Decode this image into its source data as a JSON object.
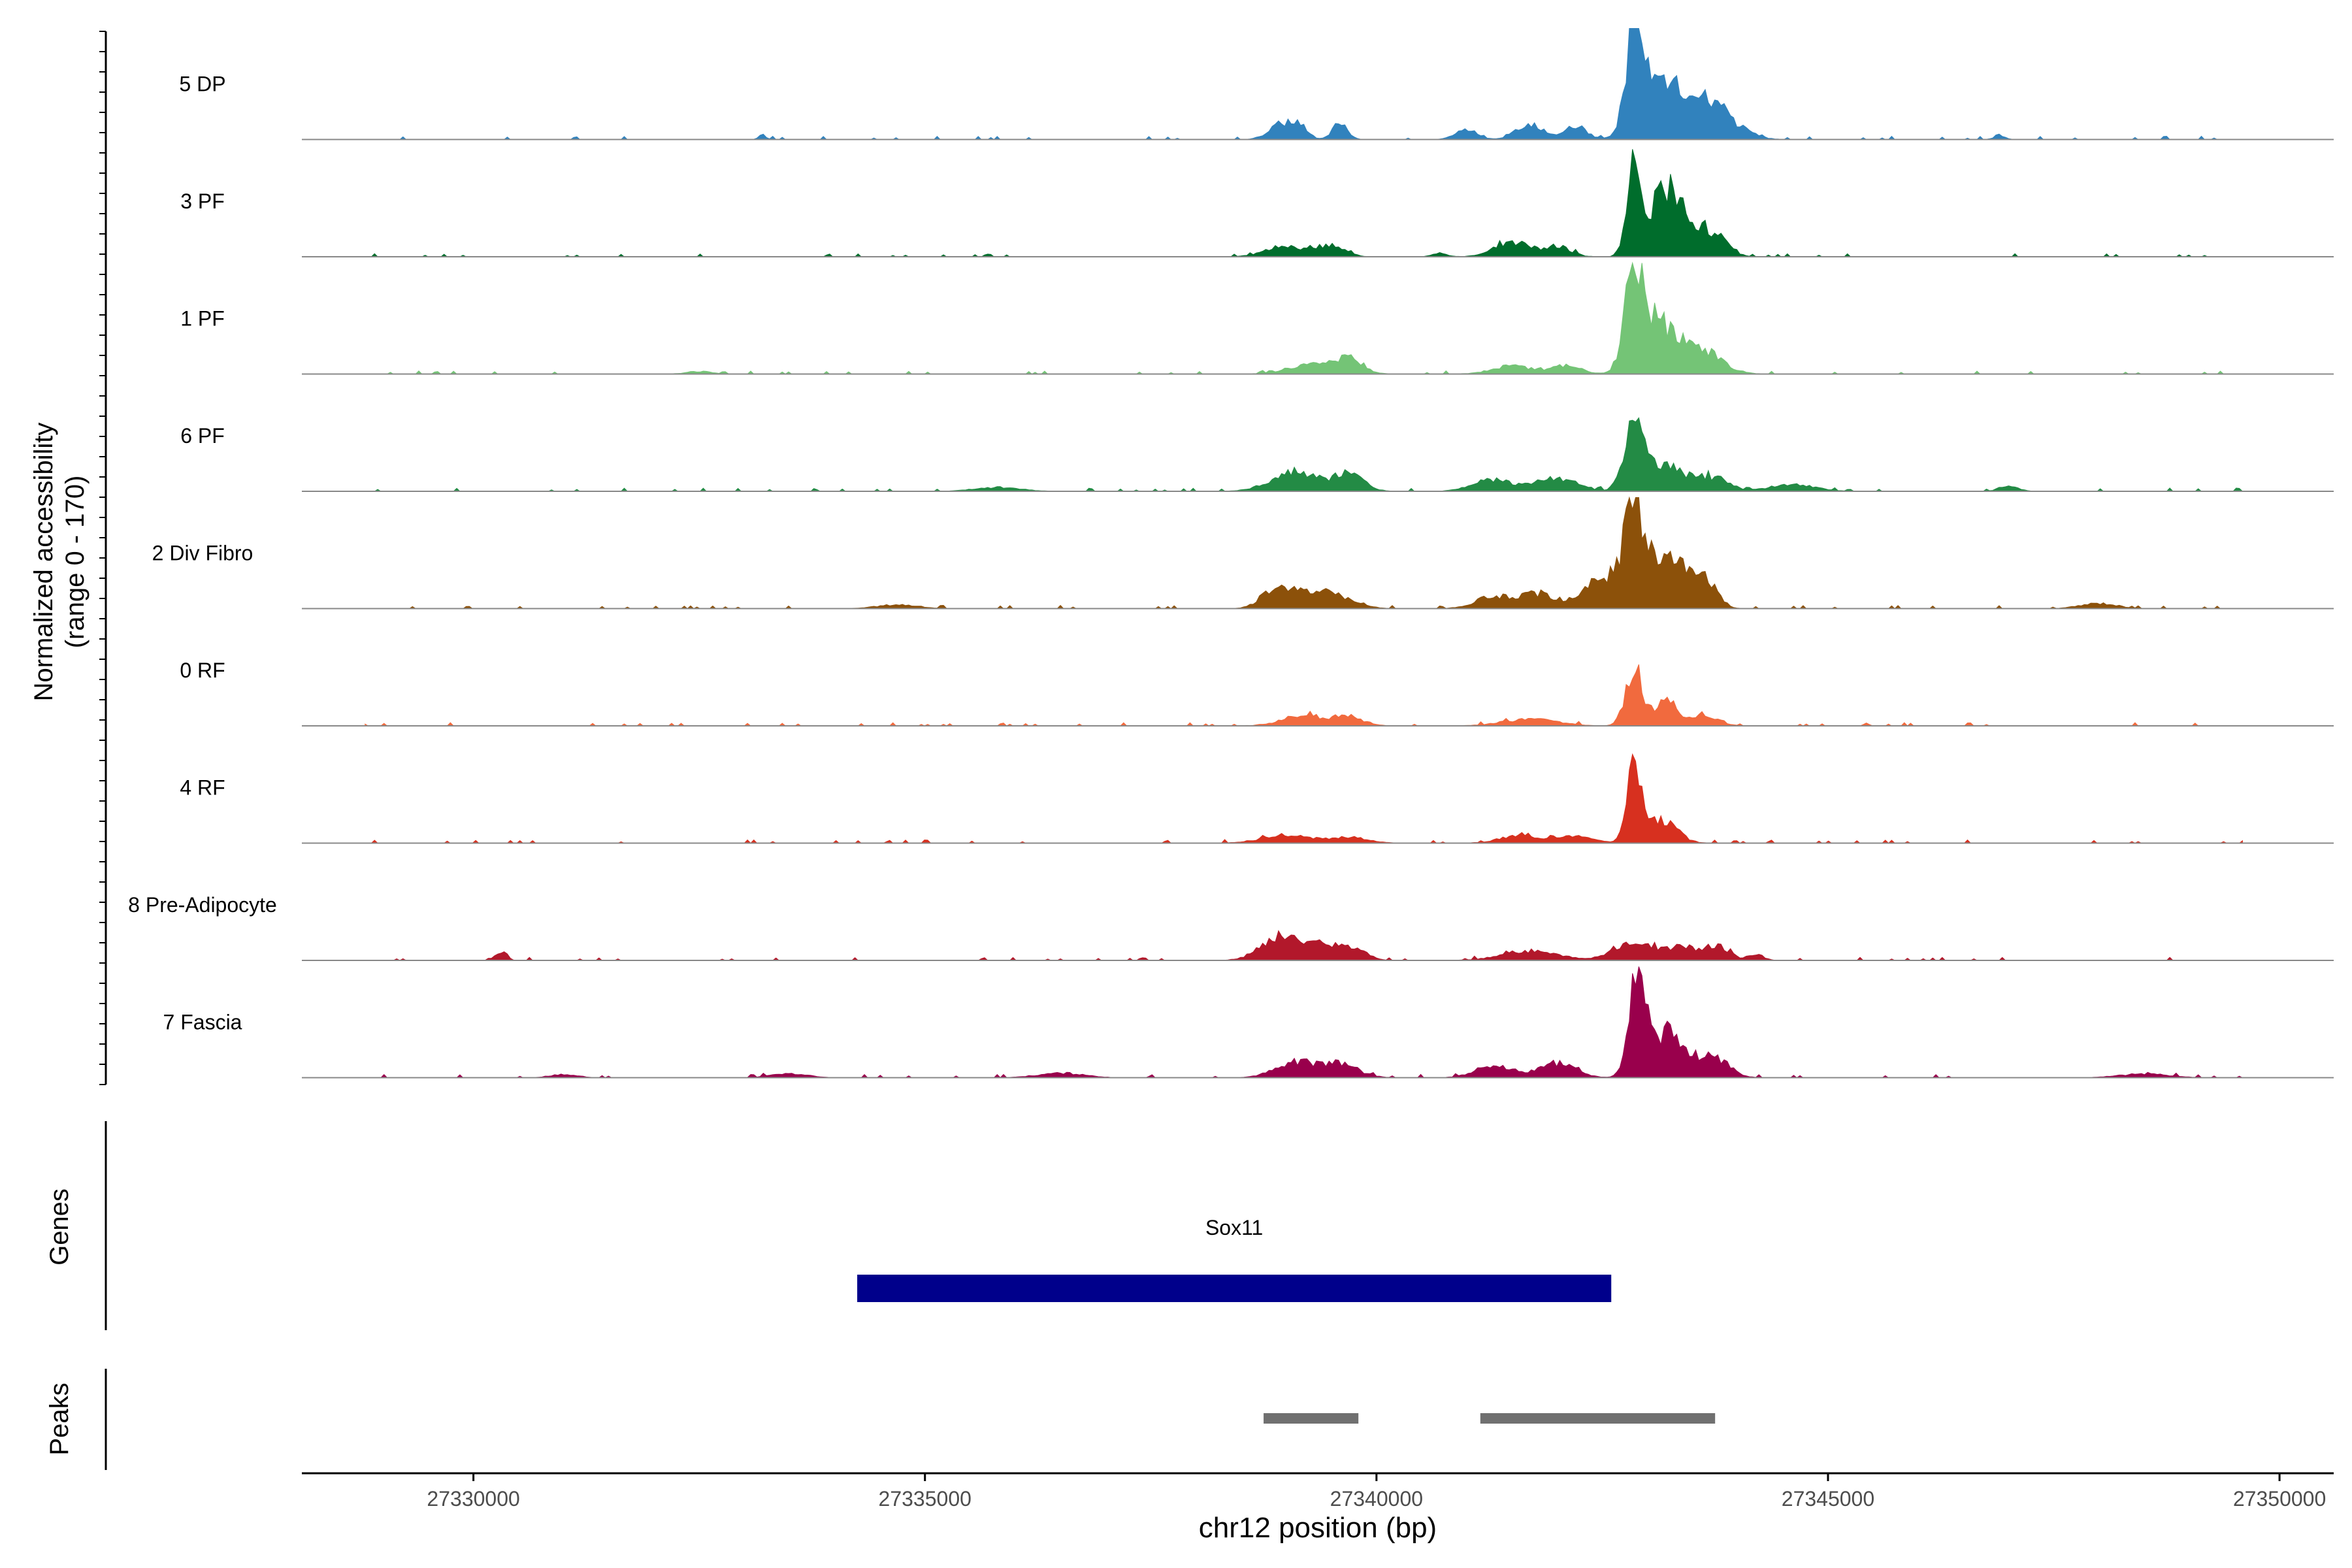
{
  "chart_data": {
    "type": "area",
    "title": "",
    "xlabel": "chr12 position (bp)",
    "ylabel": [
      "Normalized accessibility",
      "(range 0 - 170)"
    ],
    "ylim": [
      0,
      170
    ],
    "xlim": [
      27328100,
      27350600
    ],
    "x_ticks": [
      27330000,
      27335000,
      27340000,
      27345000,
      27350000
    ],
    "x_tick_labels": [
      "27330000",
      "27335000",
      "27340000",
      "27345000",
      "27350000"
    ],
    "tracks": [
      {
        "name": "5 DP",
        "color": "#3182bd",
        "peaks": [
          [
            27333200,
            7,
            40
          ],
          [
            27338900,
            18,
            120
          ],
          [
            27339100,
            22,
            110
          ],
          [
            27339600,
            26,
            80
          ],
          [
            27341000,
            15,
            120
          ],
          [
            27341700,
            25,
            150
          ],
          [
            27342200,
            22,
            120
          ],
          [
            27342850,
            145,
            90
          ],
          [
            27343150,
            90,
            220
          ],
          [
            27343650,
            55,
            200
          ],
          [
            27344000,
            12,
            180
          ],
          [
            27346900,
            7,
            60
          ]
        ]
      },
      {
        "name": "3 PF",
        "color": "#006d2c",
        "peaks": [
          [
            27339000,
            16,
            220
          ],
          [
            27339500,
            17,
            150
          ],
          [
            27340700,
            6,
            80
          ],
          [
            27341500,
            22,
            200
          ],
          [
            27342000,
            15,
            150
          ],
          [
            27342850,
            135,
            80
          ],
          [
            27343150,
            80,
            140
          ],
          [
            27343350,
            60,
            140
          ],
          [
            27343700,
            38,
            160
          ]
        ]
      },
      {
        "name": "1 PF",
        "color": "#74c476",
        "peaks": [
          [
            27332500,
            4,
            140
          ],
          [
            27339300,
            14,
            260
          ],
          [
            27339700,
            22,
            150
          ],
          [
            27341500,
            12,
            220
          ],
          [
            27342100,
            13,
            160
          ],
          [
            27342850,
            140,
            100
          ],
          [
            27343100,
            78,
            200
          ],
          [
            27343600,
            35,
            220
          ]
        ]
      },
      {
        "name": "6 PF",
        "color": "#238b45",
        "peaks": [
          [
            27335800,
            6,
            250
          ],
          [
            27339100,
            30,
            260
          ],
          [
            27339700,
            26,
            160
          ],
          [
            27341300,
            18,
            220
          ],
          [
            27342000,
            18,
            220
          ],
          [
            27342850,
            88,
            110
          ],
          [
            27343200,
            42,
            220
          ],
          [
            27343750,
            20,
            160
          ],
          [
            27344600,
            10,
            250
          ],
          [
            27347000,
            9,
            100
          ]
        ]
      },
      {
        "name": "2 Div Fibro",
        "color": "#8c510a",
        "peaks": [
          [
            27334700,
            6,
            220
          ],
          [
            27338900,
            32,
            160
          ],
          [
            27339400,
            28,
            260
          ],
          [
            27341300,
            18,
            200
          ],
          [
            27341800,
            22,
            200
          ],
          [
            27342500,
            48,
            200
          ],
          [
            27342850,
            135,
            110
          ],
          [
            27343200,
            78,
            210
          ],
          [
            27343600,
            50,
            140
          ],
          [
            27348000,
            8,
            200
          ]
        ]
      },
      {
        "name": "0 RF",
        "color": "#f16a3e",
        "peaks": [
          [
            27339200,
            16,
            240
          ],
          [
            27339700,
            13,
            160
          ],
          [
            27341700,
            10,
            300
          ],
          [
            27342850,
            90,
            90
          ],
          [
            27343200,
            40,
            110
          ],
          [
            27343600,
            18,
            160
          ]
        ]
      },
      {
        "name": "4 RF",
        "color": "#d7301f",
        "peaks": [
          [
            27339000,
            13,
            260
          ],
          [
            27339700,
            9,
            200
          ],
          [
            27341600,
            12,
            220
          ],
          [
            27342200,
            10,
            200
          ],
          [
            27342850,
            120,
            75
          ],
          [
            27343150,
            35,
            170
          ]
        ]
      },
      {
        "name": "8 Pre-Adipocyte",
        "color": "#b2182b",
        "peaks": [
          [
            27330300,
            14,
            60
          ],
          [
            27338900,
            32,
            200
          ],
          [
            27339400,
            26,
            260
          ],
          [
            27339800,
            14,
            100
          ],
          [
            27341700,
            15,
            300
          ],
          [
            27342800,
            26,
            200
          ],
          [
            27343400,
            20,
            280
          ],
          [
            27343800,
            14,
            120
          ],
          [
            27344200,
            10,
            80
          ]
        ]
      },
      {
        "name": "7 Fascia",
        "color": "#99004c",
        "peaks": [
          [
            27331000,
            5,
            150
          ],
          [
            27333500,
            6,
            200
          ],
          [
            27336500,
            7,
            250
          ],
          [
            27339100,
            24,
            220
          ],
          [
            27339600,
            20,
            200
          ],
          [
            27341300,
            20,
            200
          ],
          [
            27342000,
            22,
            200
          ],
          [
            27342900,
            155,
            95
          ],
          [
            27343250,
            70,
            190
          ],
          [
            27343750,
            30,
            160
          ],
          [
            27348500,
            6,
            260
          ]
        ]
      }
    ],
    "genes": [
      {
        "name": "Sox11",
        "start": 27334250,
        "end": 27342600,
        "color": "#00008b"
      }
    ],
    "peaks_regions": [
      [
        27338750,
        27339800
      ],
      [
        27341150,
        27343750
      ]
    ],
    "peak_color": "#707070",
    "panel_labels": {
      "genes": "Genes",
      "peaks": "Peaks"
    }
  }
}
